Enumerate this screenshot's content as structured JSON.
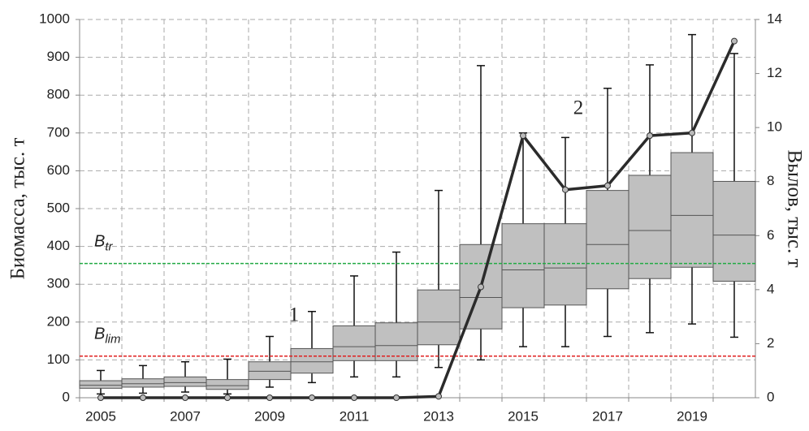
{
  "chart_data": {
    "type": "box",
    "y_label": "Биомасса, тыс. т",
    "y2_label": "Вылов, тыс. т",
    "categories": [
      "2005",
      null,
      "2007",
      null,
      "2009",
      null,
      "2011",
      null,
      "2013",
      null,
      "2015",
      null,
      "2017",
      null,
      "2019",
      null
    ],
    "boxes": {
      "color": "#c0c0c0",
      "whisker_low": [
        10,
        12,
        15,
        10,
        28,
        40,
        55,
        55,
        80,
        100,
        135,
        135,
        162,
        172,
        195,
        160
      ],
      "q1": [
        25,
        28,
        30,
        22,
        48,
        65,
        98,
        98,
        140,
        182,
        238,
        245,
        288,
        315,
        345,
        308
      ],
      "median": [
        33,
        37,
        40,
        32,
        70,
        95,
        135,
        138,
        200,
        265,
        338,
        343,
        405,
        442,
        482,
        430
      ],
      "q3": [
        45,
        50,
        55,
        48,
        95,
        130,
        190,
        198,
        285,
        405,
        460,
        460,
        548,
        588,
        648,
        572
      ],
      "whisker_high": [
        72,
        85,
        95,
        102,
        162,
        228,
        322,
        385,
        548,
        878,
        700,
        688,
        818,
        880,
        960,
        910
      ]
    },
    "series": [
      {
        "axis": "y2",
        "color": "#2b2b2b",
        "values": [
          0,
          0,
          0,
          0,
          0,
          0,
          0,
          0,
          0.05,
          4.1,
          9.7,
          7.7,
          7.85,
          9.7,
          9.8,
          13.2
        ]
      }
    ],
    "reference_lines": [
      {
        "name": "B",
        "sub": "tr",
        "value": 355,
        "color": "#22aa44"
      },
      {
        "name": "B",
        "sub": "lim",
        "value": 110,
        "color": "#e02020"
      }
    ],
    "annotations": [
      "1",
      "2"
    ],
    "ylim": [
      0,
      1000
    ],
    "yticks": [
      0,
      100,
      200,
      300,
      400,
      500,
      600,
      700,
      800,
      900,
      1000
    ],
    "y2lim": [
      0,
      14
    ],
    "y2ticks": [
      0,
      2,
      4,
      6,
      8,
      10,
      12,
      14
    ],
    "grid": true
  }
}
